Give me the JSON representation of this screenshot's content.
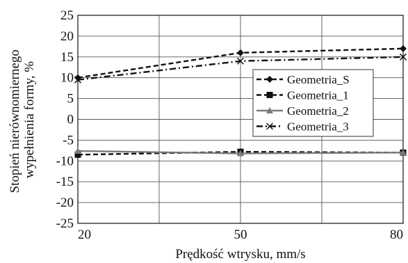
{
  "chart_data": {
    "type": "line",
    "title": "",
    "xlabel": "Prędkość wtrysku, mm/s",
    "ylabel_lines": [
      "Stopień nierównomiernego",
      "wypełnienia formy, %"
    ],
    "x": [
      20,
      50,
      80
    ],
    "x_tick_labels": [
      "20",
      "50",
      "80"
    ],
    "xlim": [
      20,
      80
    ],
    "x_gridlines": [
      20,
      35,
      50,
      65,
      80
    ],
    "ylim": [
      -25,
      25
    ],
    "y_ticks": [
      25,
      20,
      15,
      10,
      5,
      0,
      -5,
      -10,
      -15,
      -20,
      -25
    ],
    "grid": true,
    "legend_position": "right",
    "series": [
      {
        "name": "Geometria_S",
        "values": [
          10,
          16,
          17
        ],
        "color": "#111111",
        "marker": "diamond",
        "dash": "dashed"
      },
      {
        "name": "Geometria_1",
        "values": [
          -8.5,
          -7.8,
          -8.0
        ],
        "color": "#111111",
        "marker": "square",
        "dash": "dashed"
      },
      {
        "name": "Geometria_2",
        "values": [
          -7.6,
          -8.2,
          -8.0
        ],
        "color": "#7a7a7a",
        "marker": "triangle",
        "dash": "solid"
      },
      {
        "name": "Geometria_3",
        "values": [
          9.5,
          14,
          15
        ],
        "color": "#111111",
        "marker": "x",
        "dash": "dashdot"
      }
    ]
  }
}
